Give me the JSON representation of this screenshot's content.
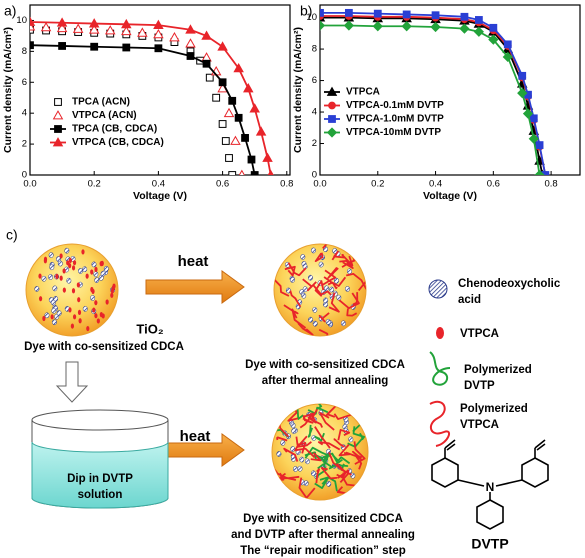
{
  "chart_data": [
    {
      "type": "line",
      "label": "a)",
      "xlabel": "Voltage (V)",
      "ylabel": "Current density (mA/cm²)",
      "xlim": [
        0,
        0.81
      ],
      "ylim": [
        0,
        11
      ],
      "xticks": [
        {
          "value": 0,
          "label": "0.0"
        },
        0.2,
        0.4,
        0.6,
        0.8
      ],
      "yticks": [
        0,
        2,
        4,
        6,
        8,
        10
      ],
      "legend": "center left",
      "series": [
        {
          "name": "TPCA  (ACN)",
          "color": "#000000",
          "marker": "square-open",
          "line": false,
          "x": [
            0,
            0.05,
            0.1,
            0.15,
            0.2,
            0.25,
            0.3,
            0.35,
            0.4,
            0.45,
            0.5,
            0.53,
            0.56,
            0.58,
            0.6,
            0.61,
            0.62,
            0.63
          ],
          "values": [
            9.4,
            9.35,
            9.3,
            9.25,
            9.2,
            9.15,
            9.1,
            9.0,
            8.9,
            8.6,
            8.0,
            7.4,
            6.3,
            5.0,
            3.3,
            2.2,
            1.1,
            0
          ]
        },
        {
          "name": "VTPCA  (ACN)",
          "color": "#e8242a",
          "marker": "triangle-open",
          "line": false,
          "x": [
            0,
            0.05,
            0.1,
            0.15,
            0.2,
            0.25,
            0.3,
            0.35,
            0.4,
            0.45,
            0.5,
            0.55,
            0.58,
            0.6,
            0.62,
            0.64,
            0.66
          ],
          "values": [
            9.6,
            9.55,
            9.5,
            9.45,
            9.4,
            9.35,
            9.3,
            9.2,
            9.1,
            8.9,
            8.5,
            7.6,
            6.7,
            5.6,
            4.0,
            2.2,
            0
          ]
        },
        {
          "name": "TPCA  (CB, CDCA)",
          "color": "#000000",
          "marker": "square",
          "line": true,
          "x": [
            0,
            0.1,
            0.2,
            0.3,
            0.4,
            0.5,
            0.55,
            0.6,
            0.63,
            0.65,
            0.67,
            0.69,
            0.7
          ],
          "values": [
            8.4,
            8.35,
            8.3,
            8.25,
            8.2,
            7.7,
            7.2,
            6.0,
            4.8,
            3.7,
            2.4,
            1.0,
            0
          ]
        },
        {
          "name": "VTPCA  (CB, CDCA)",
          "color": "#e8242a",
          "marker": "triangle",
          "line": true,
          "x": [
            0,
            0.1,
            0.2,
            0.3,
            0.4,
            0.5,
            0.55,
            0.6,
            0.65,
            0.68,
            0.7,
            0.72,
            0.74,
            0.75
          ],
          "values": [
            9.9,
            9.85,
            9.8,
            9.75,
            9.7,
            9.4,
            9.0,
            8.3,
            6.9,
            5.6,
            4.3,
            2.8,
            1.1,
            0
          ]
        }
      ]
    },
    {
      "type": "line",
      "label": "b)",
      "xlabel": "Voltage (V)",
      "ylabel": "Current density (mA/cm²)",
      "xlim": [
        0,
        0.9
      ],
      "ylim": [
        0,
        10.8
      ],
      "xticks": [
        {
          "value": 0,
          "label": "0.0"
        },
        0.2,
        0.4,
        0.6,
        0.8
      ],
      "yticks": [
        0,
        2,
        4,
        6,
        8,
        10
      ],
      "legend": "upper left",
      "series": [
        {
          "name": "VTPCA",
          "color": "#000000",
          "marker": "triangle",
          "line": true,
          "x": [
            0,
            0.1,
            0.2,
            0.3,
            0.4,
            0.5,
            0.55,
            0.6,
            0.65,
            0.7,
            0.72,
            0.74,
            0.76,
            0.77
          ],
          "values": [
            10.0,
            10.0,
            9.95,
            9.95,
            9.9,
            9.8,
            9.6,
            9.1,
            8.0,
            5.8,
            4.4,
            2.8,
            0.9,
            0
          ]
        },
        {
          "name": "VTPCA-0.1mM DVTP",
          "color": "#e8242a",
          "marker": "circle",
          "line": true,
          "x": [
            0,
            0.1,
            0.2,
            0.3,
            0.4,
            0.5,
            0.55,
            0.6,
            0.65,
            0.7,
            0.72,
            0.74,
            0.76,
            0.78
          ],
          "values": [
            10.1,
            10.1,
            10.05,
            10.05,
            10.0,
            9.9,
            9.7,
            9.2,
            8.2,
            6.2,
            5.0,
            3.5,
            1.8,
            0
          ]
        },
        {
          "name": "VTPCA-1.0mM DVTP",
          "color": "#2a3fd4",
          "marker": "square",
          "line": true,
          "x": [
            0,
            0.1,
            0.2,
            0.3,
            0.4,
            0.5,
            0.55,
            0.6,
            0.65,
            0.7,
            0.72,
            0.74,
            0.76,
            0.78
          ],
          "values": [
            10.3,
            10.3,
            10.25,
            10.2,
            10.15,
            10.05,
            9.85,
            9.35,
            8.3,
            6.3,
            5.1,
            3.6,
            1.9,
            0
          ]
        },
        {
          "name": "VTPCA-10mM DVTP",
          "color": "#22a33a",
          "marker": "diamond",
          "line": true,
          "x": [
            0,
            0.1,
            0.2,
            0.3,
            0.4,
            0.5,
            0.55,
            0.6,
            0.65,
            0.7,
            0.72,
            0.74,
            0.76
          ],
          "values": [
            9.5,
            9.5,
            9.45,
            9.45,
            9.4,
            9.3,
            9.1,
            8.6,
            7.5,
            5.2,
            3.9,
            2.3,
            0
          ]
        }
      ]
    }
  ],
  "diagram": {
    "label": "c)",
    "heat_top": "heat",
    "heat_bottom": "heat",
    "tio2": "TiO₂",
    "caption_1": "Dye with co-sensitized CDCA",
    "caption_2": [
      "Dye with co-sensitized CDCA",
      "after thermal annealing"
    ],
    "beaker": [
      "Dip in DVTP",
      "solution"
    ],
    "caption_3": [
      "Dye with co-sensitized CDCA",
      "and DVTP after thermal annealing",
      "The “repair modification” step"
    ],
    "legend": [
      [
        "Chenodeoxycholic",
        "acid"
      ],
      [
        "VTPCA"
      ],
      [
        "Polymerized",
        "DVTP"
      ],
      [
        "Polymerized",
        "VTPCA"
      ]
    ],
    "molecule": "DVTP"
  }
}
